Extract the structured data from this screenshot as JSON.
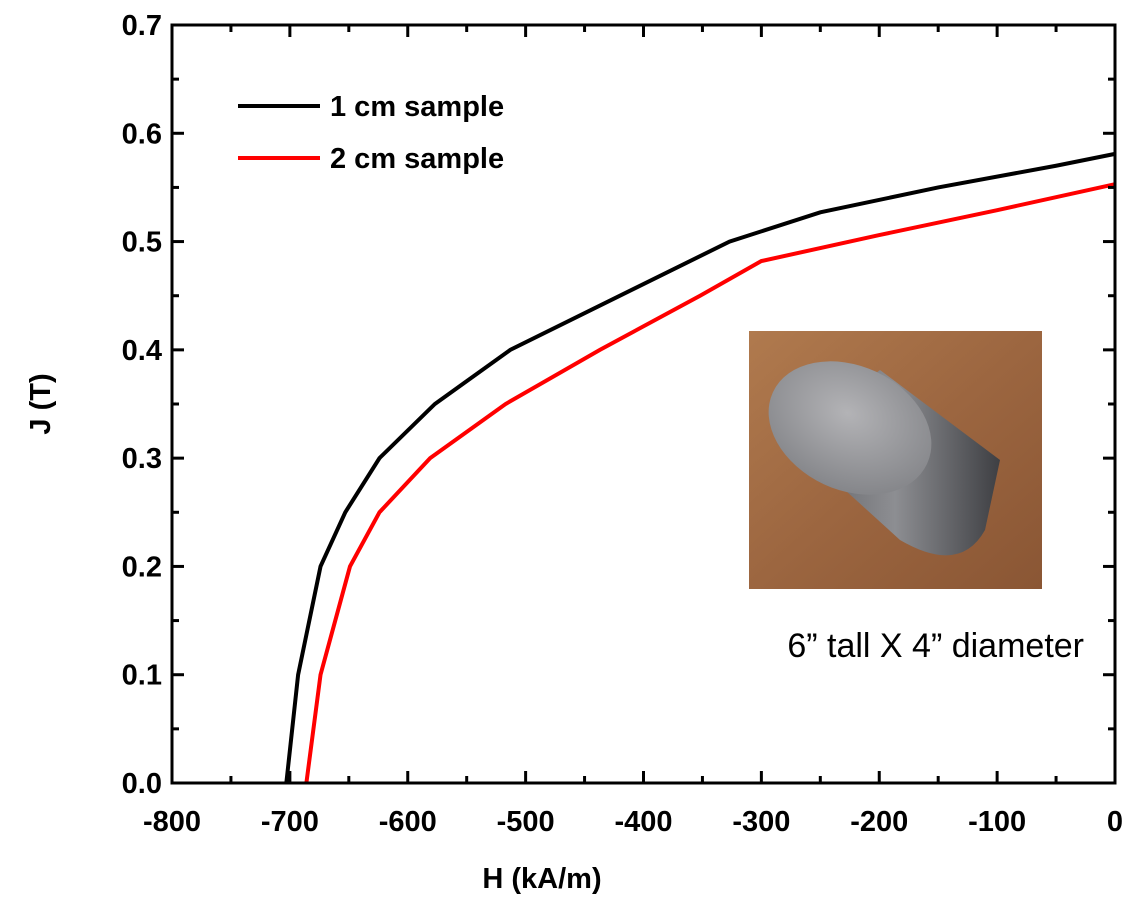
{
  "chart_data": {
    "type": "line",
    "x_label": "H (kA/m)",
    "y_label": "J (T)",
    "xlim": [
      -800,
      0
    ],
    "xticks": [
      -800,
      -700,
      -600,
      -500,
      -400,
      -300,
      -200,
      -100,
      0
    ],
    "ylim": [
      0,
      0.7
    ],
    "yticks": [
      {
        "value": 0,
        "label": "0.0"
      },
      0.1,
      0.2,
      0.3,
      0.4,
      0.5,
      0.6,
      0.7
    ],
    "legend": "upper left",
    "series": [
      {
        "name": "1 cm sample",
        "color": "#000000",
        "x": [
          -703,
          -693,
          -674,
          -653,
          -624,
          -577,
          -513,
          -420,
          -327,
          -250,
          -150,
          -50,
          0
        ],
        "values": [
          0,
          0.1,
          0.2,
          0.25,
          0.3,
          0.35,
          0.4,
          0.45,
          0.5,
          0.527,
          0.55,
          0.57,
          0.581
        ]
      },
      {
        "name": "2 cm sample",
        "color": "#ff0000",
        "x": [
          -686,
          -674,
          -649,
          -624,
          -581,
          -517,
          -437,
          -352,
          -300,
          -200,
          -100,
          0
        ],
        "values": [
          0,
          0.1,
          0.2,
          0.25,
          0.3,
          0.35,
          0.4,
          0.45,
          0.482,
          0.506,
          0.529,
          0.553
        ]
      }
    ],
    "annotation": "6” tall X 4” diameter"
  }
}
